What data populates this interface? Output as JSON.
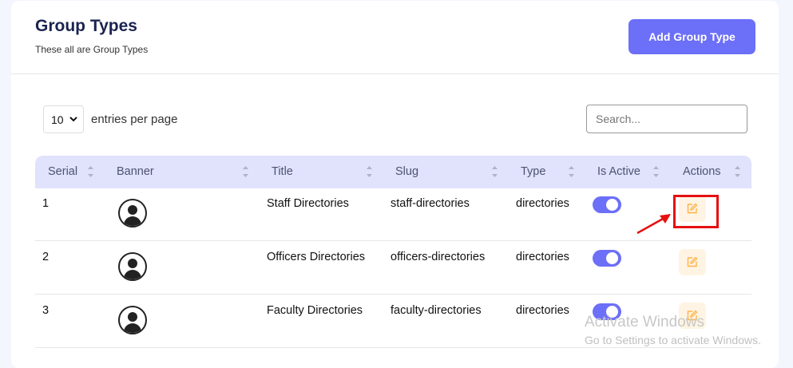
{
  "header": {
    "title": "Group Types",
    "subtitle": "These all are Group Types",
    "add_button": "Add Group Type"
  },
  "controls": {
    "entries_value": "10",
    "entries_label": "entries per page",
    "search_placeholder": "Search..."
  },
  "table": {
    "columns": [
      "Serial",
      "Banner",
      "Title",
      "Slug",
      "Type",
      "Is Active",
      "Actions"
    ],
    "rows": [
      {
        "serial": "1",
        "title": "Staff Directories",
        "slug": "staff-directories",
        "type": "directories",
        "active": true
      },
      {
        "serial": "2",
        "title": "Officers Directories",
        "slug": "officers-directories",
        "type": "directories",
        "active": true
      },
      {
        "serial": "3",
        "title": "Faculty Directories",
        "slug": "faculty-directories",
        "type": "directories",
        "active": true
      }
    ]
  },
  "watermark": {
    "line1": "Activate Windows",
    "line2": "Go to Settings to activate Windows."
  },
  "colors": {
    "accent": "#6c6ff7",
    "header_bg": "#e1e2fb",
    "edit_bg": "#fff4e3",
    "edit_icon": "#ffb24a",
    "highlight": "#e61010"
  }
}
